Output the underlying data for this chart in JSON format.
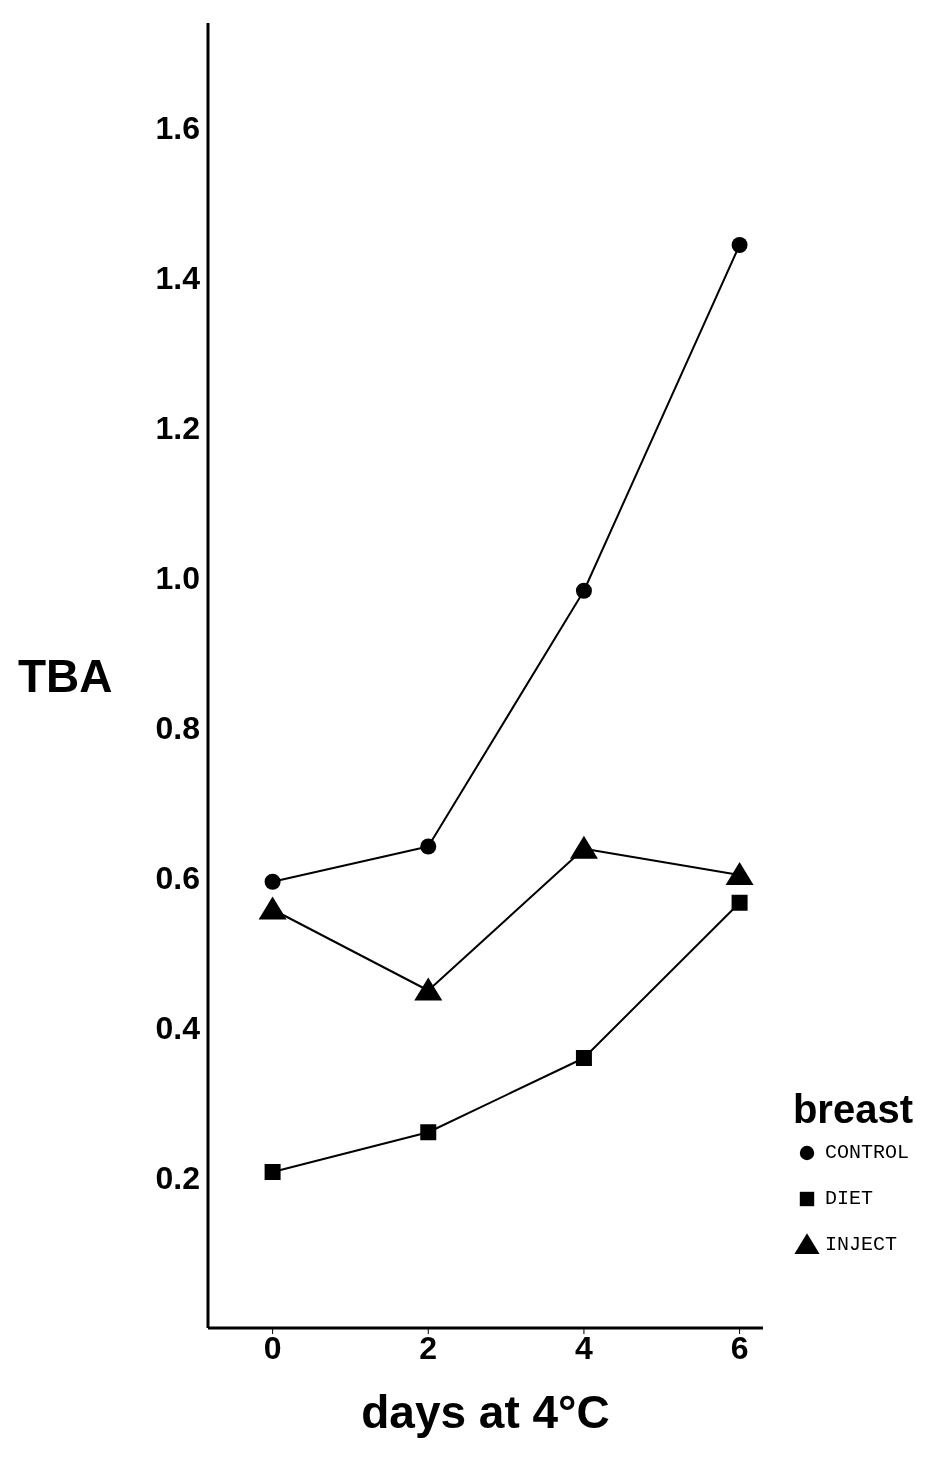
{
  "chart_data": {
    "type": "line",
    "xlabel": "days at 4°C",
    "ylabel": "TBA",
    "legend_title": "breast",
    "x": [
      0,
      2,
      4,
      6
    ],
    "series": [
      {
        "name": "CONTROL",
        "color": "#000000",
        "marker": "circle",
        "values": [
          0.595,
          0.642,
          0.983,
          1.444
        ]
      },
      {
        "name": "DIET",
        "color": "#000000",
        "marker": "square",
        "values": [
          0.208,
          0.261,
          0.36,
          0.567
        ]
      },
      {
        "name": "INJECT",
        "color": "#000000",
        "marker": "triangle",
        "values": [
          0.558,
          0.45,
          0.639,
          0.604
        ]
      }
    ],
    "xlim": [
      -0.83,
      6.3
    ],
    "xticks": [
      0,
      2,
      4,
      6
    ],
    "ylim": [
      0,
      1.74
    ],
    "yticks": [
      0.2,
      0.4,
      0.6,
      0.8,
      {
        "value": 1,
        "label": "1.0"
      },
      1.2,
      1.4,
      1.6
    ],
    "grid": false,
    "legend": "bottom right",
    "line_style": "solid"
  }
}
